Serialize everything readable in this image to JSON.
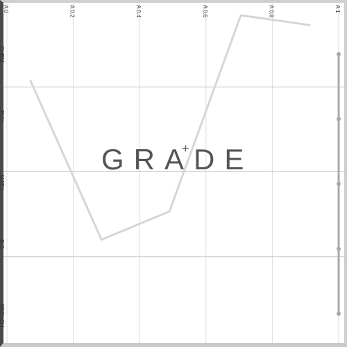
{
  "chart_data": {
    "type": "line",
    "title": "GRADE",
    "title_mark": "+",
    "x_ticks": [
      "A 0",
      "A 0.2",
      "A 0.4",
      "A 0.6",
      "A 0.8",
      "A 1"
    ],
    "y_categories": [
      "CHEM",
      "PHY",
      "MATH",
      "BIO",
      "FRENCH"
    ],
    "xlim": [
      0,
      1
    ],
    "series": [
      {
        "name": "grade",
        "x": [
          0.07,
          0.285,
          0.49,
          0.705,
          0.915
        ],
        "y": [
          0.78,
          0.3,
          0.385,
          0.975,
          0.945
        ],
        "color": "#d6d6d6"
      }
    ],
    "slider_stops": 5,
    "grid": true
  }
}
